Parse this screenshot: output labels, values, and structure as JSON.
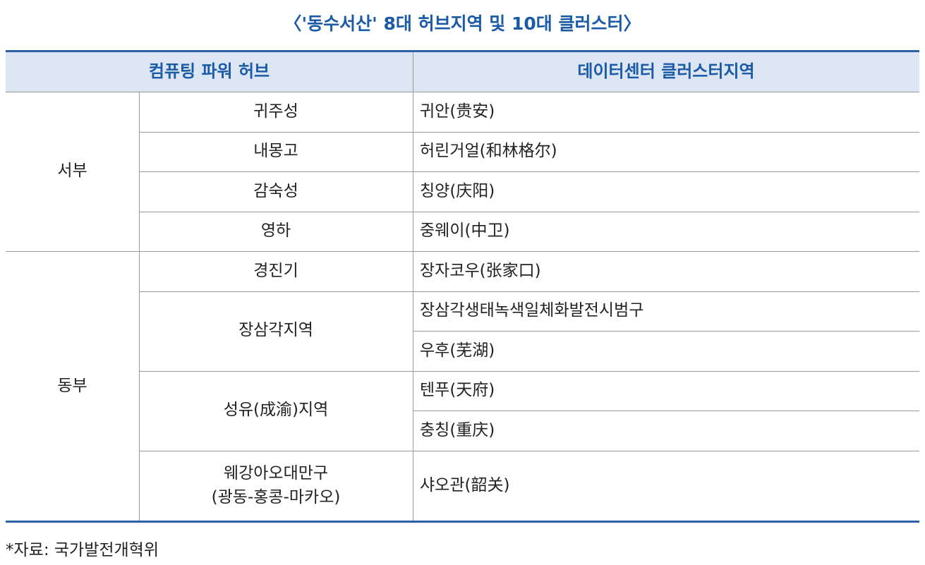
{
  "title": "〈'동수서산' 8대 허브지역 및 10대 클러스터〉",
  "table": {
    "headers": [
      "컴퓨팅 파워 허브",
      "데이터센터 클러스터지역"
    ],
    "groups": [
      {
        "region": "서부",
        "hubs": [
          {
            "lines": [
              "귀주성"
            ],
            "clusters": [
              "귀안(贵安)"
            ]
          },
          {
            "lines": [
              "내몽고"
            ],
            "clusters": [
              "허린거얼(和林格尔)"
            ]
          },
          {
            "lines": [
              "감숙성"
            ],
            "clusters": [
              "칭양(庆阳)"
            ]
          },
          {
            "lines": [
              "영하"
            ],
            "clusters": [
              "중웨이(中卫)"
            ]
          }
        ]
      },
      {
        "region": "동부",
        "hubs": [
          {
            "lines": [
              "경진기"
            ],
            "clusters": [
              "장자코우(张家口)"
            ]
          },
          {
            "lines": [
              "장삼각지역"
            ],
            "clusters": [
              "장삼각생태녹색일체화발전시범구",
              "우후(芜湖)"
            ]
          },
          {
            "lines": [
              "성유(成渝)지역"
            ],
            "clusters": [
              "텐푸(天府)",
              "충칭(重庆)"
            ]
          },
          {
            "lines": [
              "웨강아오대만구",
              "(광동-홍콩-마카오)"
            ],
            "clusters": [
              "샤오관(韶关)"
            ]
          }
        ]
      }
    ]
  },
  "footnote": "*자료: 국가발전개혁위"
}
